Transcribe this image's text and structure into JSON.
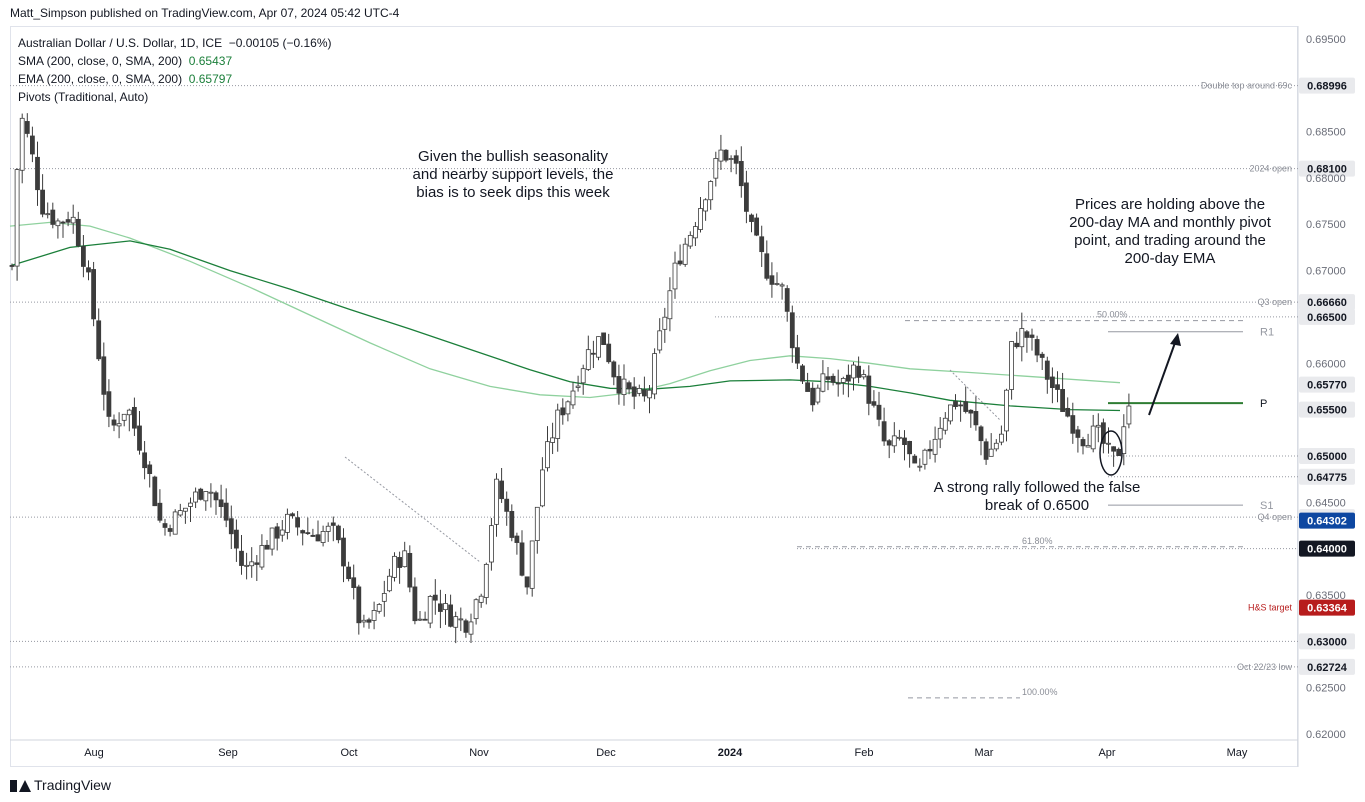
{
  "header": {
    "published_by": "Matt_Simpson published on TradingView.com, Apr 07, 2024 05:42 UTC-4"
  },
  "legend": {
    "symbol": "Australian Dollar / U.S. Dollar, 1D, ICE",
    "change": "−0.00105 (−0.16%)",
    "sma_label": "SMA (200, close, 0, SMA, 200)",
    "sma_value": "0.65437",
    "ema_label": "EMA (200, close, 0, SMA, 200)",
    "ema_value": "0.65797",
    "pivots_label": "Pivots (Traditional, Auto)"
  },
  "annotations": {
    "bias": "Given the bullish seasonality and nearby support levels, the bias is to seek dips this week",
    "holding": "Prices are holding above the 200-day MA and monthly pivot point, and trading around the 200-day EMA",
    "rally": "A strong rally followed the false break of 0.6500"
  },
  "footer": {
    "brand": "TradingView"
  },
  "colors": {
    "sma": "#1b7f3a",
    "ema": "#8fd19e",
    "up": "#ffffff",
    "down": "#3c3c3c",
    "target": "#b71c1c",
    "current": "#0d47a1"
  },
  "chart_data": {
    "type": "candlestick",
    "ylim": [
      0.6188,
      0.6965
    ],
    "x_ticks": [
      "Aug",
      "Sep",
      "Oct",
      "Nov",
      "Dec",
      "2024",
      "Feb",
      "Mar",
      "Apr",
      "May"
    ],
    "y_ticks": [
      "0.69500",
      "0.68500",
      "0.68000",
      "0.67500",
      "0.67000",
      "0.66000",
      "0.64500",
      "0.63500",
      "0.62500",
      "0.62000"
    ],
    "levels": [
      {
        "label": "Double top around 69c",
        "value": 0.68996,
        "price": "0.68996"
      },
      {
        "label": "2024 open",
        "value": 0.681,
        "price": "0.68100"
      },
      {
        "label": "Q3 open",
        "value": 0.6666,
        "price": "0.66660"
      },
      {
        "label": "",
        "value": 0.665,
        "price": "0.66500"
      },
      {
        "label": "",
        "value": 0.6577,
        "price": "0.65770"
      },
      {
        "label": "",
        "value": 0.655,
        "price": "0.65500"
      },
      {
        "label": "",
        "value": 0.65,
        "price": "0.65000"
      },
      {
        "label": "",
        "value": 0.64775,
        "price": "0.64775"
      },
      {
        "label": "Q4 open",
        "value": 0.6434,
        "price": "0.64340"
      },
      {
        "label": "",
        "value": 0.64302,
        "price": "0.64302"
      },
      {
        "label": "",
        "value": 0.64,
        "price": "0.64000"
      },
      {
        "label": "H&S target",
        "value": 0.63364,
        "price": "0.63364"
      },
      {
        "label": "",
        "value": 0.63,
        "price": "0.63000"
      },
      {
        "label": "Oct 22/23 low",
        "value": 0.62724,
        "price": "0.62724"
      }
    ],
    "fib_labels": [
      "50.00%",
      "61.80%",
      "100.00%"
    ],
    "pivot_labels": [
      "R1",
      "P",
      "S1"
    ],
    "pivots": {
      "R1": 0.6634,
      "P": 0.6557,
      "S1": 0.6447
    },
    "fib_levels": {
      "50.00%": 0.6646,
      "61.80%": 0.6402,
      "100.00%": 0.6239
    },
    "sma_path": [
      [
        0,
        0.6705
      ],
      [
        60,
        0.6725
      ],
      [
        120,
        0.6732
      ],
      [
        160,
        0.6723
      ],
      [
        220,
        0.67
      ],
      [
        280,
        0.668
      ],
      [
        340,
        0.6658
      ],
      [
        400,
        0.6637
      ],
      [
        460,
        0.6615
      ],
      [
        520,
        0.6593
      ],
      [
        560,
        0.658
      ],
      [
        600,
        0.6573
      ],
      [
        640,
        0.6572
      ],
      [
        680,
        0.6575
      ],
      [
        720,
        0.6581
      ],
      [
        780,
        0.6582
      ],
      [
        820,
        0.658
      ],
      [
        860,
        0.6575
      ],
      [
        900,
        0.6568
      ],
      [
        940,
        0.656
      ],
      [
        1000,
        0.6554
      ],
      [
        1060,
        0.655
      ],
      [
        1110,
        0.6549
      ]
    ],
    "ema_path": [
      [
        0,
        0.6748
      ],
      [
        40,
        0.6752
      ],
      [
        80,
        0.6748
      ],
      [
        120,
        0.6735
      ],
      [
        180,
        0.671
      ],
      [
        240,
        0.6682
      ],
      [
        300,
        0.6652
      ],
      [
        360,
        0.6622
      ],
      [
        420,
        0.6594
      ],
      [
        480,
        0.6575
      ],
      [
        530,
        0.6566
      ],
      [
        580,
        0.6563
      ],
      [
        620,
        0.6568
      ],
      [
        660,
        0.6578
      ],
      [
        700,
        0.6592
      ],
      [
        740,
        0.6603
      ],
      [
        780,
        0.6608
      ],
      [
        820,
        0.6605
      ],
      [
        860,
        0.66
      ],
      [
        900,
        0.6594
      ],
      [
        960,
        0.659
      ],
      [
        1030,
        0.6585
      ],
      [
        1110,
        0.6579
      ]
    ]
  }
}
